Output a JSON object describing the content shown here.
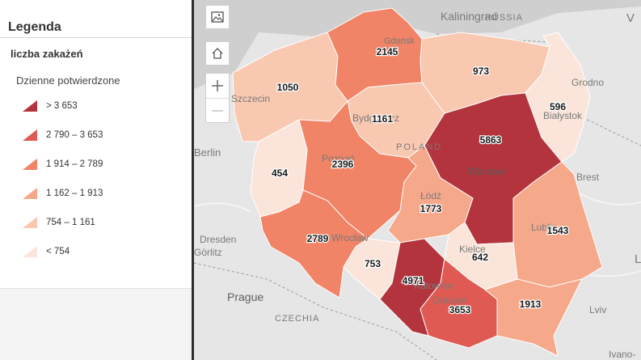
{
  "legend": {
    "title": "Legenda",
    "layer_name": "liczba zakażeń",
    "field_name": "Dzienne potwierdzone",
    "classes": [
      {
        "label": "> 3 653",
        "color": "#b3343c"
      },
      {
        "label": "2 790 – 3 653",
        "color": "#df5a52"
      },
      {
        "label": "1 914 – 2 789",
        "color": "#f18366"
      },
      {
        "label": "1 162 – 1 913",
        "color": "#f6a88a"
      },
      {
        "label": "754 – 1 161",
        "color": "#f9c8b0"
      },
      {
        "label": "< 754",
        "color": "#fbe5da"
      }
    ]
  },
  "map": {
    "basemap_labels": {
      "kaliningrad": "Kaliningrad",
      "russia": "RUSSIA",
      "gdansk": "Gdańsk",
      "szczecin": "Szczecin",
      "bydgoszcz": "Bydgoszcz",
      "grodno": "Grodno",
      "bialystok": "Białystok",
      "poland": "POLAND",
      "warsaw": "Warsaw",
      "brest": "Brest",
      "berlin": "Berlin",
      "poznan": "Poznań",
      "lodz": "Łódź",
      "lublin": "Lublin",
      "dresden": "Dresden",
      "wroclaw": "Wrocław",
      "kielce": "Kielce",
      "gorlitz": "Görlitz",
      "katowice": "Katowice",
      "prague": "Prague",
      "czechia": "CZECHIA",
      "krakow": "Cracow",
      "lviv": "Lviv",
      "ivano": "Ivano-",
      "edge_v": "V",
      "edge_l": "L"
    },
    "regions": [
      {
        "id": "pomorskie",
        "value": 2145,
        "color": "#f18366"
      },
      {
        "id": "warminsko-mazurskie",
        "value": 973,
        "color": "#f9c8b0"
      },
      {
        "id": "podlaskie",
        "value": 596,
        "color": "#fbe5da"
      },
      {
        "id": "zachodniopomorskie",
        "value": 1050,
        "color": "#f9c8b0"
      },
      {
        "id": "kujawsko-pomorskie",
        "value": 1161,
        "color": "#f9c8b0"
      },
      {
        "id": "mazowieckie",
        "value": 5863,
        "color": "#b3343c"
      },
      {
        "id": "lubuskie",
        "value": 454,
        "color": "#fbe5da"
      },
      {
        "id": "wielkopolskie",
        "value": 2396,
        "color": "#f18366"
      },
      {
        "id": "lodzkie",
        "value": 1773,
        "color": "#f6a88a"
      },
      {
        "id": "lubelskie",
        "value": 1543,
        "color": "#f6a88a"
      },
      {
        "id": "dolnoslaskie",
        "value": 2789,
        "color": "#f18366"
      },
      {
        "id": "opolskie",
        "value": 753,
        "color": "#fbe5da"
      },
      {
        "id": "slaskie",
        "value": 4971,
        "color": "#b3343c"
      },
      {
        "id": "swietokrzyskie",
        "value": 642,
        "color": "#fbe5da"
      },
      {
        "id": "malopolskie",
        "value": 3653,
        "color": "#df5a52"
      },
      {
        "id": "podkarpackie",
        "value": 1913,
        "color": "#f6a88a"
      }
    ]
  }
}
